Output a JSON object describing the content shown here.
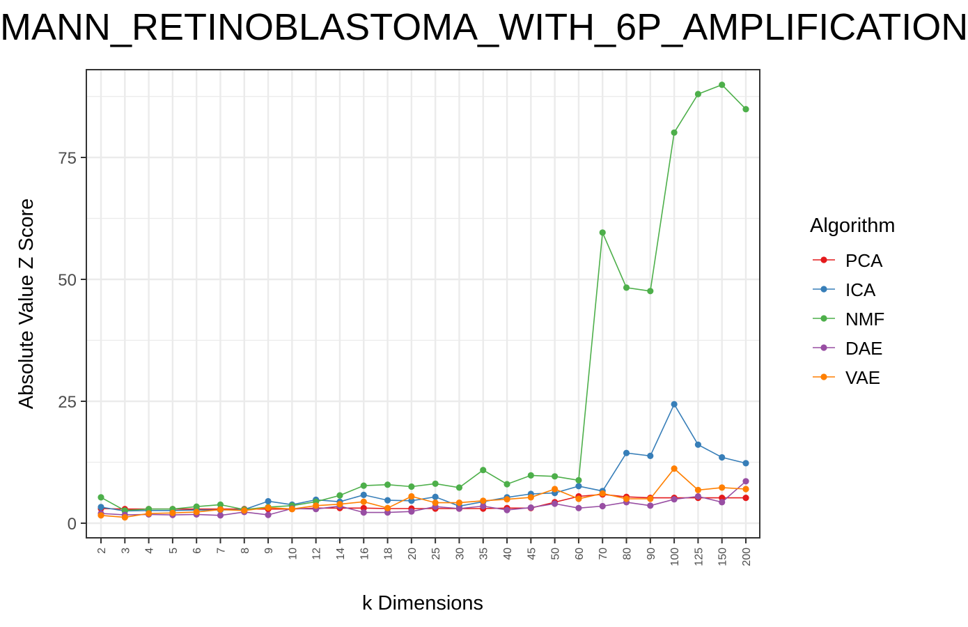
{
  "chart_data": {
    "type": "line",
    "title": "MANN_RETINOBLASTOMA_WITH_6P_AMPLIFICATION",
    "xlabel": "k Dimensions",
    "ylabel": "Absolute Value Z Score",
    "categories": [
      "2",
      "3",
      "4",
      "5",
      "6",
      "7",
      "8",
      "9",
      "10",
      "12",
      "14",
      "16",
      "18",
      "20",
      "25",
      "30",
      "35",
      "40",
      "45",
      "50",
      "60",
      "70",
      "80",
      "90",
      "100",
      "125",
      "150",
      "200"
    ],
    "ylim": [
      -3,
      93
    ],
    "yticks": [
      0,
      25,
      50,
      75
    ],
    "grid": true,
    "legend": {
      "title": "Algorithm",
      "position": "right"
    },
    "series": [
      {
        "name": "PCA",
        "color": "#E41A1C",
        "values": [
          3.0,
          2.9,
          2.9,
          2.9,
          2.9,
          2.9,
          2.9,
          2.9,
          2.9,
          3.1,
          3.1,
          3.1,
          3.0,
          3.0,
          3.0,
          3.0,
          3.0,
          3.1,
          3.1,
          4.3,
          5.5,
          5.9,
          5.4,
          5.2,
          5.2,
          5.2,
          5.2,
          5.2
        ]
      },
      {
        "name": "ICA",
        "color": "#377EB8",
        "values": [
          3.3,
          2.5,
          2.6,
          2.6,
          2.7,
          2.7,
          2.8,
          4.5,
          3.8,
          4.8,
          4.4,
          5.8,
          4.7,
          4.6,
          5.4,
          3.5,
          4.4,
          5.3,
          6.0,
          6.2,
          7.6,
          6.6,
          14.4,
          13.8,
          24.4,
          16.1,
          13.5,
          12.3
        ]
      },
      {
        "name": "NMF",
        "color": "#4DAF4A",
        "values": [
          5.3,
          2.6,
          2.9,
          2.9,
          3.4,
          3.8,
          2.8,
          3.3,
          3.6,
          4.4,
          5.7,
          7.7,
          7.9,
          7.5,
          8.1,
          7.3,
          10.9,
          8.0,
          9.8,
          9.6,
          8.8,
          59.6,
          48.3,
          47.6,
          80.1,
          88.0,
          89.9,
          84.9
        ]
      },
      {
        "name": "DAE",
        "color": "#984EA3",
        "values": [
          2.0,
          1.7,
          1.8,
          1.7,
          1.8,
          1.6,
          2.3,
          1.7,
          3.0,
          2.9,
          3.5,
          2.2,
          2.2,
          2.4,
          3.4,
          3.0,
          3.5,
          2.7,
          3.2,
          4.0,
          3.1,
          3.5,
          4.3,
          3.6,
          4.9,
          5.5,
          4.3,
          8.6
        ]
      },
      {
        "name": "VAE",
        "color": "#FF7F00",
        "values": [
          1.6,
          1.2,
          2.0,
          2.1,
          2.3,
          2.8,
          2.6,
          3.2,
          2.9,
          3.6,
          3.9,
          4.4,
          3.1,
          5.5,
          4.2,
          4.2,
          4.6,
          4.9,
          5.3,
          7.0,
          5.0,
          6.1,
          5.0,
          5.0,
          11.2,
          6.8,
          7.3,
          7.0
        ]
      }
    ]
  }
}
